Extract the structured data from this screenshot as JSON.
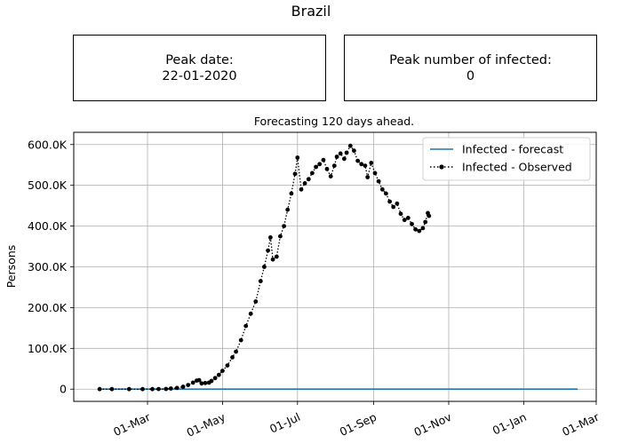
{
  "suptitle": "Brazil",
  "info_boxes": {
    "peak_date_label": "Peak date:",
    "peak_date_value": "22-01-2020",
    "peak_infected_label": "Peak number of infected:",
    "peak_infected_value": "0"
  },
  "colors": {
    "forecast": "#1f77b4",
    "observed": "#000000",
    "grid": "#b0b0b0"
  },
  "chart_data": {
    "type": "line",
    "title": "Forecasting 120 days ahead.",
    "xlabel": "",
    "ylabel": "Persons",
    "grid": true,
    "legend_position": "top-right",
    "xlim": [
      "2020-01-01",
      "2021-03-01"
    ],
    "ylim": [
      -30000,
      630000
    ],
    "x_ticks": [
      {
        "date": "2020-03-01",
        "label": "01-Mar"
      },
      {
        "date": "2020-05-01",
        "label": "01-May"
      },
      {
        "date": "2020-07-01",
        "label": "01-Jul"
      },
      {
        "date": "2020-09-01",
        "label": "01-Sep"
      },
      {
        "date": "2020-11-01",
        "label": "01-Nov"
      },
      {
        "date": "2021-01-01",
        "label": "01-Jan"
      },
      {
        "date": "2021-03-01",
        "label": "01-Mar"
      }
    ],
    "y_ticks": [
      {
        "value": 0,
        "label": "0"
      },
      {
        "value": 100000,
        "label": "100.0K"
      },
      {
        "value": 200000,
        "label": "200.0K"
      },
      {
        "value": 300000,
        "label": "300.0K"
      },
      {
        "value": 400000,
        "label": "400.0K"
      },
      {
        "value": 500000,
        "label": "500.0K"
      },
      {
        "value": 600000,
        "label": "600.0K"
      }
    ],
    "series": [
      {
        "name": "Infected - forecast",
        "style": "solid line",
        "points": [
          {
            "x": "2020-01-22",
            "y": 0
          },
          {
            "x": "2021-02-14",
            "y": 0
          }
        ]
      },
      {
        "name": "Infected - Observed",
        "style": "dotted line with dot markers",
        "points": [
          {
            "x": "2020-01-22",
            "y": 0
          },
          {
            "x": "2020-02-01",
            "y": 0
          },
          {
            "x": "2020-02-15",
            "y": 0
          },
          {
            "x": "2020-02-26",
            "y": 0
          },
          {
            "x": "2020-03-05",
            "y": 100
          },
          {
            "x": "2020-03-10",
            "y": 300
          },
          {
            "x": "2020-03-16",
            "y": 500
          },
          {
            "x": "2020-03-20",
            "y": 1500
          },
          {
            "x": "2020-03-25",
            "y": 3000
          },
          {
            "x": "2020-03-30",
            "y": 6000
          },
          {
            "x": "2020-04-03",
            "y": 10000
          },
          {
            "x": "2020-04-07",
            "y": 16000
          },
          {
            "x": "2020-04-10",
            "y": 21000
          },
          {
            "x": "2020-04-12",
            "y": 22000
          },
          {
            "x": "2020-04-14",
            "y": 14000
          },
          {
            "x": "2020-04-17",
            "y": 15000
          },
          {
            "x": "2020-04-20",
            "y": 16000
          },
          {
            "x": "2020-04-22",
            "y": 20000
          },
          {
            "x": "2020-04-25",
            "y": 27000
          },
          {
            "x": "2020-04-28",
            "y": 35000
          },
          {
            "x": "2020-05-01",
            "y": 45000
          },
          {
            "x": "2020-05-05",
            "y": 58000
          },
          {
            "x": "2020-05-09",
            "y": 78000
          },
          {
            "x": "2020-05-12",
            "y": 92000
          },
          {
            "x": "2020-05-16",
            "y": 120000
          },
          {
            "x": "2020-05-20",
            "y": 155000
          },
          {
            "x": "2020-05-24",
            "y": 185000
          },
          {
            "x": "2020-05-28",
            "y": 215000
          },
          {
            "x": "2020-06-01",
            "y": 265000
          },
          {
            "x": "2020-06-04",
            "y": 300000
          },
          {
            "x": "2020-06-07",
            "y": 340000
          },
          {
            "x": "2020-06-09",
            "y": 372000
          },
          {
            "x": "2020-06-11",
            "y": 318000
          },
          {
            "x": "2020-06-14",
            "y": 325000
          },
          {
            "x": "2020-06-17",
            "y": 375000
          },
          {
            "x": "2020-06-20",
            "y": 400000
          },
          {
            "x": "2020-06-23",
            "y": 440000
          },
          {
            "x": "2020-06-26",
            "y": 480000
          },
          {
            "x": "2020-06-29",
            "y": 528000
          },
          {
            "x": "2020-07-01",
            "y": 568000
          },
          {
            "x": "2020-07-04",
            "y": 490000
          },
          {
            "x": "2020-07-07",
            "y": 505000
          },
          {
            "x": "2020-07-10",
            "y": 515000
          },
          {
            "x": "2020-07-13",
            "y": 530000
          },
          {
            "x": "2020-07-16",
            "y": 545000
          },
          {
            "x": "2020-07-19",
            "y": 552000
          },
          {
            "x": "2020-07-22",
            "y": 562000
          },
          {
            "x": "2020-07-25",
            "y": 540000
          },
          {
            "x": "2020-07-28",
            "y": 522000
          },
          {
            "x": "2020-07-31",
            "y": 548000
          },
          {
            "x": "2020-08-02",
            "y": 570000
          },
          {
            "x": "2020-08-05",
            "y": 578000
          },
          {
            "x": "2020-08-08",
            "y": 565000
          },
          {
            "x": "2020-08-10",
            "y": 580000
          },
          {
            "x": "2020-08-13",
            "y": 597000
          },
          {
            "x": "2020-08-16",
            "y": 585000
          },
          {
            "x": "2020-08-19",
            "y": 560000
          },
          {
            "x": "2020-08-22",
            "y": 552000
          },
          {
            "x": "2020-08-25",
            "y": 548000
          },
          {
            "x": "2020-08-27",
            "y": 520000
          },
          {
            "x": "2020-08-30",
            "y": 555000
          },
          {
            "x": "2020-09-02",
            "y": 530000
          },
          {
            "x": "2020-09-05",
            "y": 510000
          },
          {
            "x": "2020-09-08",
            "y": 490000
          },
          {
            "x": "2020-09-11",
            "y": 480000
          },
          {
            "x": "2020-09-14",
            "y": 460000
          },
          {
            "x": "2020-09-17",
            "y": 447000
          },
          {
            "x": "2020-09-20",
            "y": 455000
          },
          {
            "x": "2020-09-23",
            "y": 430000
          },
          {
            "x": "2020-09-26",
            "y": 415000
          },
          {
            "x": "2020-09-29",
            "y": 420000
          },
          {
            "x": "2020-10-02",
            "y": 405000
          },
          {
            "x": "2020-10-05",
            "y": 392000
          },
          {
            "x": "2020-10-08",
            "y": 388000
          },
          {
            "x": "2020-10-11",
            "y": 395000
          },
          {
            "x": "2020-10-13",
            "y": 410000
          },
          {
            "x": "2020-10-15",
            "y": 432000
          },
          {
            "x": "2020-10-16",
            "y": 425000
          }
        ]
      }
    ]
  }
}
